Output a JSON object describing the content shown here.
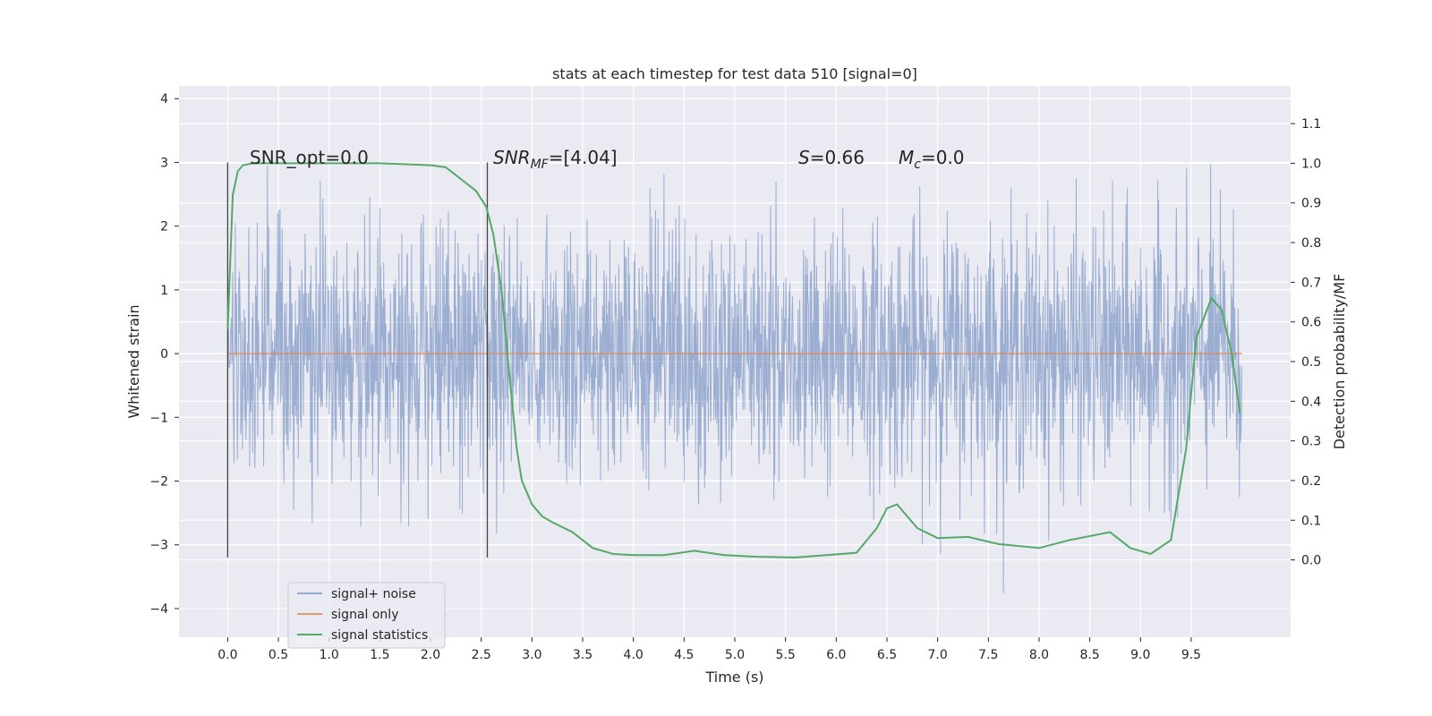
{
  "chart_data": {
    "type": "line",
    "title": "stats at each timestep for test data 510 [signal=0]",
    "xlabel": "Time (s)",
    "ylabel": "Whitened strain",
    "y2label": "Detection probability/MF",
    "xlim": [
      -0.48,
      10.48
    ],
    "ylim": [
      -4.45,
      4.2
    ],
    "y2lim": [
      -0.195,
      1.195
    ],
    "xticks": [
      "0.0",
      "0.5",
      "1.0",
      "1.5",
      "2.0",
      "2.5",
      "3.0",
      "3.5",
      "4.0",
      "4.5",
      "5.0",
      "5.5",
      "6.0",
      "6.5",
      "7.0",
      "7.5",
      "8.0",
      "8.5",
      "9.0",
      "9.5"
    ],
    "yticks": [
      "4",
      "3",
      "2",
      "1",
      "0",
      "−1",
      "−2",
      "−3",
      "−4"
    ],
    "y2ticks": [
      "1.1",
      "1.0",
      "0.9",
      "0.8",
      "0.7",
      "0.6",
      "0.5",
      "0.4",
      "0.3",
      "0.2",
      "0.1",
      "0.0"
    ],
    "grid": true,
    "legend_position": "lower-left",
    "series": [
      {
        "name": "signal+ noise",
        "color": "#4c72b0",
        "opacity": 0.5,
        "description": "whitened noise, approx N(0,1), 0–10 s",
        "x_range": [
          0,
          10
        ]
      },
      {
        "name": "signal only",
        "color": "#dd8452",
        "values_constant": 0.0,
        "x_range": [
          0,
          10
        ]
      },
      {
        "name": "signal statistics",
        "color": "#55a868",
        "axis": "right",
        "x": [
          0.0,
          0.05,
          0.1,
          0.15,
          0.25,
          0.4,
          0.6,
          1.0,
          1.5,
          2.0,
          2.15,
          2.3,
          2.45,
          2.55,
          2.62,
          2.7,
          2.78,
          2.85,
          2.9,
          3.0,
          3.1,
          3.2,
          3.4,
          3.6,
          3.8,
          4.0,
          4.3,
          4.6,
          4.9,
          5.2,
          5.6,
          5.9,
          6.2,
          6.4,
          6.5,
          6.6,
          6.8,
          7.0,
          7.3,
          7.6,
          8.0,
          8.3,
          8.7,
          8.9,
          9.1,
          9.3,
          9.45,
          9.55,
          9.7,
          9.8,
          9.9,
          9.98
        ],
        "y": [
          0.58,
          0.92,
          0.98,
          0.995,
          1.0,
          1.0,
          1.0,
          1.0,
          1.0,
          0.995,
          0.99,
          0.96,
          0.93,
          0.89,
          0.82,
          0.68,
          0.46,
          0.28,
          0.2,
          0.14,
          0.11,
          0.095,
          0.07,
          0.03,
          0.015,
          0.012,
          0.012,
          0.023,
          0.012,
          0.008,
          0.006,
          0.012,
          0.018,
          0.08,
          0.13,
          0.14,
          0.08,
          0.055,
          0.058,
          0.04,
          0.03,
          0.05,
          0.07,
          0.03,
          0.015,
          0.05,
          0.28,
          0.56,
          0.66,
          0.63,
          0.52,
          0.37
        ]
      }
    ],
    "vlines": [
      {
        "x": 0.0,
        "ymin": -3.2,
        "ymax": 3.0
      },
      {
        "x": 2.56,
        "ymin": -3.2,
        "ymax": 3.0
      }
    ],
    "annotations": [
      {
        "id": "snr_opt",
        "text": "SNR_opt=0.0",
        "x": 0.2,
        "y": 3.2
      },
      {
        "id": "snr_mf",
        "text": "SNR",
        "sub": "MF",
        "value": "=[4.04]",
        "x": 2.6,
        "y": 3.2
      },
      {
        "id": "s_stat",
        "text": "S",
        "value": "=0.66",
        "x": 5.6,
        "y": 3.2
      },
      {
        "id": "mc",
        "text": "M",
        "sub": "c",
        "value": "=0.0",
        "x": 6.6,
        "y": 3.2
      }
    ]
  }
}
